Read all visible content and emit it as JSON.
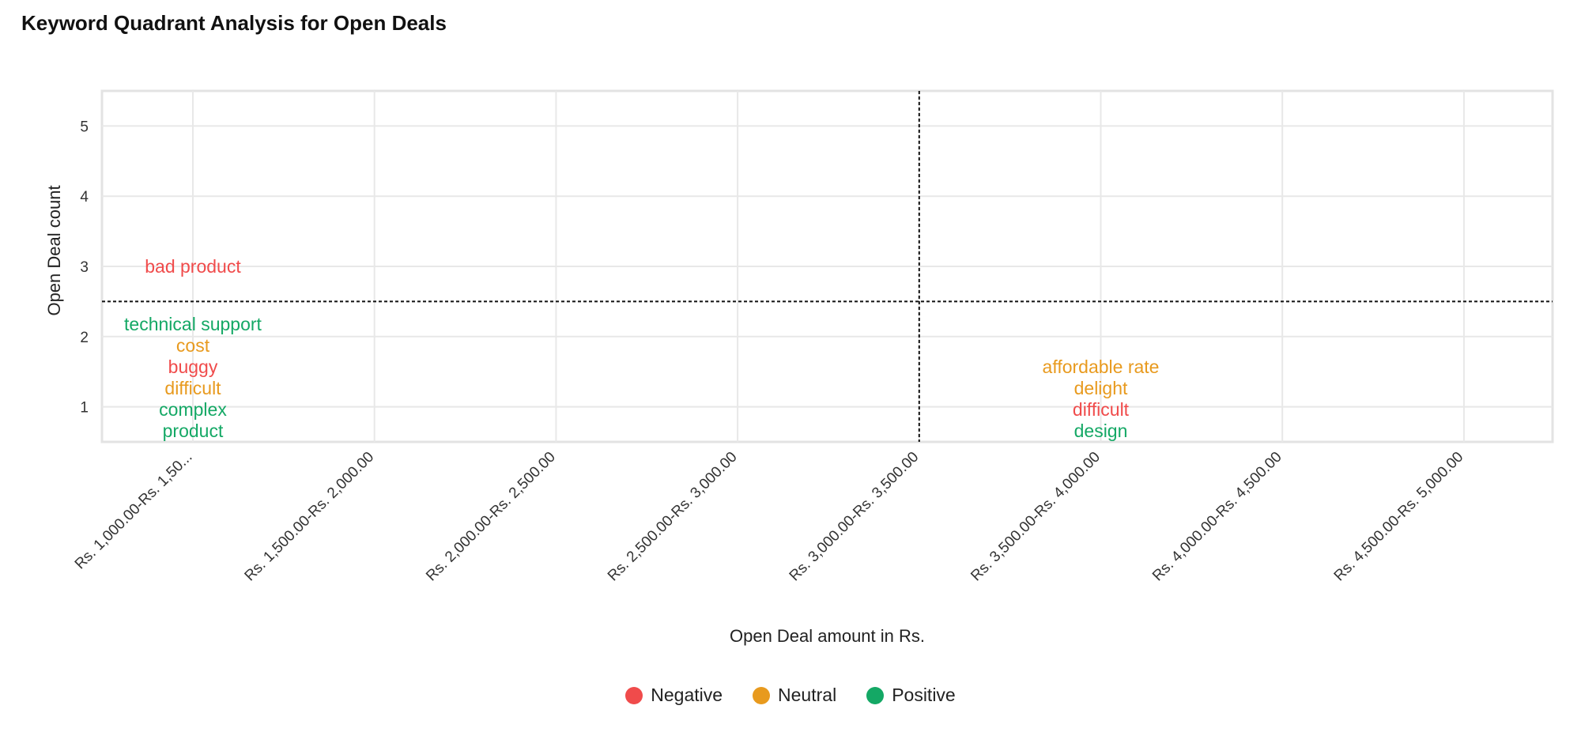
{
  "title": "Keyword Quadrant Analysis for Open Deals",
  "chart_data": {
    "type": "scatter",
    "title": "Keyword Quadrant Analysis for Open Deals",
    "xlabel": "Open Deal amount in Rs.",
    "ylabel": "Open Deal count",
    "categories": [
      "Rs. 1,000.00-Rs. 1,50...",
      "Rs. 1,500.00-Rs. 2,000.00",
      "Rs. 2,000.00-Rs. 2,500.00",
      "Rs. 2,500.00-Rs. 3,000.00",
      "Rs. 3,000.00-Rs. 3,500.00",
      "Rs. 3,500.00-Rs. 4,000.00",
      "Rs. 4,000.00-Rs. 4,500.00",
      "Rs. 4,500.00-Rs. 5,000.00"
    ],
    "yticks": [
      "1",
      "2",
      "3",
      "4",
      "5"
    ],
    "ylim": [
      0.5,
      5.5
    ],
    "grid": true,
    "quadrant_lines": {
      "x_category_index": 4,
      "y": 2.5
    },
    "points": [
      {
        "label": "bad product",
        "x": 0,
        "y": 3,
        "sentiment": "Negative"
      },
      {
        "label": "technical support",
        "x": 0,
        "y": 1,
        "sentiment": "Positive"
      },
      {
        "label": "cost",
        "x": 0,
        "y": 1,
        "sentiment": "Neutral"
      },
      {
        "label": "buggy",
        "x": 0,
        "y": 1,
        "sentiment": "Negative"
      },
      {
        "label": "difficult",
        "x": 0,
        "y": 1,
        "sentiment": "Neutral"
      },
      {
        "label": "complex",
        "x": 0,
        "y": 1,
        "sentiment": "Positive"
      },
      {
        "label": "product",
        "x": 0,
        "y": 1,
        "sentiment": "Positive"
      },
      {
        "label": "affordable rate",
        "x": 5,
        "y": 1,
        "sentiment": "Neutral"
      },
      {
        "label": "delight",
        "x": 5,
        "y": 1,
        "sentiment": "Neutral"
      },
      {
        "label": "difficult",
        "x": 5,
        "y": 1,
        "sentiment": "Negative"
      },
      {
        "label": "design",
        "x": 5,
        "y": 1,
        "sentiment": "Positive"
      }
    ],
    "legend": [
      {
        "name": "Negative",
        "color": "#f04b4b"
      },
      {
        "name": "Neutral",
        "color": "#e89a1e"
      },
      {
        "name": "Positive",
        "color": "#14a865"
      }
    ],
    "legend_position": "bottom"
  }
}
